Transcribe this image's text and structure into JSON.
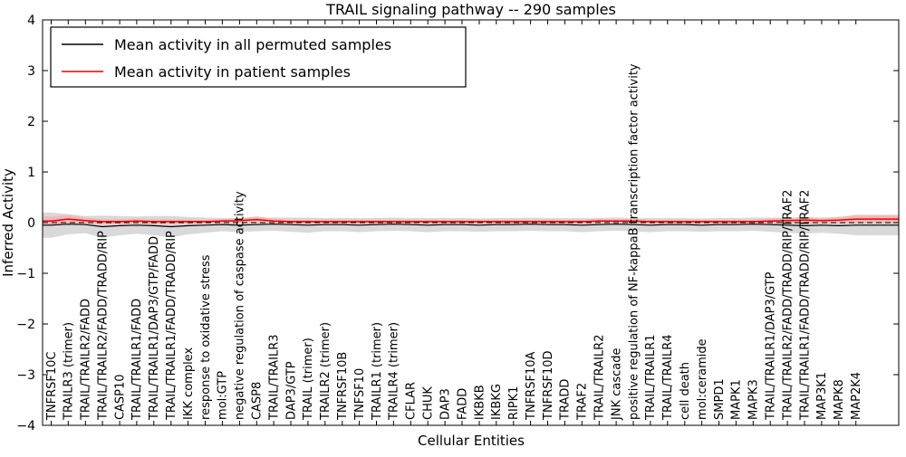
{
  "chart_data": {
    "type": "line",
    "title": "TRAIL signaling pathway -- 290 samples",
    "xlabel": "Cellular Entities",
    "ylabel": "Inferred Activity",
    "ylim": [
      -4,
      4
    ],
    "yticks": [
      -4,
      -3,
      -2,
      -1,
      0,
      1,
      2,
      3,
      4
    ],
    "grid": false,
    "legend_position": "upper left",
    "zero_line": {
      "style": "dashed",
      "color": "#000000",
      "y": 0
    },
    "categories": [
      "TNFRSF10C",
      "TRAILR3 (trimer)",
      "TRAIL/TRAILR2/FADD",
      "TRAIL/TRAILR2/FADD/TRADD/RIP",
      "CASP10",
      "TRAIL/TRAILR1/FADD",
      "TRAIL/TRAILR1/DAP3/GTP/FADD",
      "TRAIL/TRAILR1/FADD/TRADD/RIP",
      "IKK complex",
      "response to oxidative stress",
      "mol:GTP",
      "negative regulation of caspase activity",
      "CASP8",
      "TRAIL/TRAILR3",
      "DAP3/GTP",
      "TRAIL (trimer)",
      "TRAILR2 (trimer)",
      "TNFRSF10B",
      "TNFSF10",
      "TRAILR1 (trimer)",
      "TRAILR4 (trimer)",
      "CFLAR",
      "CHUK",
      "DAP3",
      "FADD",
      "IKBKB",
      "IKBKG",
      "RIPK1",
      "TNFRSF10A",
      "TNFRSF10D",
      "TRADD",
      "TRAF2",
      "TRAIL/TRAILR2",
      "JNK cascade",
      "positive regulation of NF-kappaB transcription factor activity",
      "TRAIL/TRAILR1",
      "TRAIL/TRAILR4",
      "cell death",
      "mol:ceramide",
      "SMPD1",
      "MAPK1",
      "MAPK3",
      "TRAIL/TRAILR1/DAP3/GTP",
      "TRAIL/TRAILR2/FADD/TRADD/RIP/TRAF2",
      "TRAIL/TRAILR1/FADD/TRADD/RIP/TRAF2",
      "MAP3K1",
      "MAPK8",
      "MAP2K4"
    ],
    "series": [
      {
        "name": "Mean activity in all permuted samples",
        "color": "#000000",
        "band_color": "#d9d9d9",
        "values": [
          -0.05,
          -0.03,
          -0.04,
          -0.08,
          -0.06,
          -0.05,
          -0.06,
          -0.08,
          -0.06,
          -0.05,
          -0.04,
          -0.05,
          -0.04,
          -0.03,
          -0.04,
          -0.05,
          -0.04,
          -0.04,
          -0.05,
          -0.04,
          -0.03,
          -0.04,
          -0.05,
          -0.04,
          -0.04,
          -0.05,
          -0.04,
          -0.04,
          -0.03,
          -0.04,
          -0.04,
          -0.05,
          -0.04,
          -0.03,
          -0.04,
          -0.05,
          -0.04,
          -0.04,
          -0.05,
          -0.04,
          -0.04,
          -0.03,
          -0.04,
          -0.05,
          -0.06,
          -0.05,
          -0.06,
          -0.05
        ],
        "band_halfwidth": [
          0.25,
          0.2,
          0.17,
          0.22,
          0.19,
          0.17,
          0.19,
          0.21,
          0.17,
          0.15,
          0.13,
          0.14,
          0.13,
          0.13,
          0.14,
          0.15,
          0.13,
          0.13,
          0.14,
          0.13,
          0.13,
          0.13,
          0.14,
          0.13,
          0.13,
          0.13,
          0.13,
          0.13,
          0.13,
          0.13,
          0.13,
          0.14,
          0.13,
          0.13,
          0.13,
          0.14,
          0.13,
          0.13,
          0.13,
          0.13,
          0.13,
          0.13,
          0.14,
          0.15,
          0.16,
          0.15,
          0.16,
          0.2
        ]
      },
      {
        "name": "Mean activity in patient samples",
        "color": "#e60000",
        "band_color": "#f6b8b8",
        "values": [
          0.03,
          0.07,
          0.04,
          0.02,
          0.02,
          0.03,
          0.02,
          0.02,
          0.02,
          0.02,
          0.03,
          0.04,
          0.06,
          0.03,
          0.02,
          0.02,
          0.02,
          0.02,
          0.02,
          0.02,
          0.02,
          0.02,
          0.02,
          0.02,
          0.02,
          0.02,
          0.02,
          0.02,
          0.02,
          0.02,
          0.02,
          0.02,
          0.03,
          0.03,
          0.03,
          0.02,
          0.02,
          0.02,
          0.02,
          0.02,
          0.02,
          0.02,
          0.03,
          0.04,
          0.05,
          0.04,
          0.05,
          0.07
        ],
        "band_halfwidth": [
          0.09,
          0.08,
          0.06,
          0.05,
          0.05,
          0.05,
          0.05,
          0.05,
          0.04,
          0.04,
          0.04,
          0.05,
          0.06,
          0.05,
          0.04,
          0.04,
          0.04,
          0.04,
          0.04,
          0.04,
          0.04,
          0.04,
          0.04,
          0.04,
          0.04,
          0.04,
          0.04,
          0.04,
          0.04,
          0.04,
          0.04,
          0.04,
          0.04,
          0.04,
          0.04,
          0.04,
          0.04,
          0.04,
          0.04,
          0.04,
          0.04,
          0.04,
          0.05,
          0.05,
          0.06,
          0.05,
          0.06,
          0.08
        ]
      }
    ]
  }
}
